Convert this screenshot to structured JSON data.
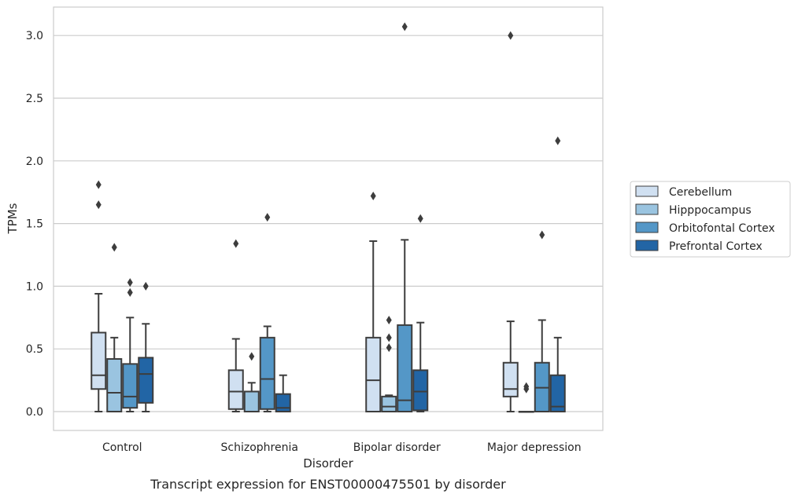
{
  "caption": "Transcript expression for ENST00000475501 by disorder",
  "chart_data": {
    "type": "box",
    "title": "",
    "xlabel": "Disorder",
    "ylabel": "TPMs",
    "ylim": [
      -0.15,
      3.23
    ],
    "yticks": [
      0.0,
      0.5,
      1.0,
      1.5,
      2.0,
      2.5,
      3.0
    ],
    "ytick_labels": [
      "0.0",
      "0.5",
      "1.0",
      "1.5",
      "2.0",
      "2.5",
      "3.0"
    ],
    "grid": "horizontal",
    "legend_position": "right",
    "categories": [
      "Control",
      "Schizophrenia",
      "Bipolar disorder",
      "Major depression"
    ],
    "series": [
      {
        "name": "Cerebellum",
        "color": "#d0e0f1",
        "boxes": [
          {
            "whislo": 0.0,
            "q1": 0.18,
            "med": 0.29,
            "q3": 0.63,
            "whishi": 0.94,
            "fliers": [
              1.65,
              1.81
            ]
          },
          {
            "whislo": 0.0,
            "q1": 0.02,
            "med": 0.16,
            "q3": 0.33,
            "whishi": 0.58,
            "fliers": [
              1.34
            ]
          },
          {
            "whislo": 0.0,
            "q1": 0.0,
            "med": 0.25,
            "q3": 0.59,
            "whishi": 1.36,
            "fliers": [
              1.72
            ]
          },
          {
            "whislo": 0.0,
            "q1": 0.12,
            "med": 0.18,
            "q3": 0.39,
            "whishi": 0.72,
            "fliers": [
              3.0
            ]
          }
        ]
      },
      {
        "name": "Hipppocampus",
        "color": "#9ac4e0",
        "boxes": [
          {
            "whislo": 0.0,
            "q1": 0.0,
            "med": 0.15,
            "q3": 0.42,
            "whishi": 0.59,
            "fliers": [
              1.31
            ]
          },
          {
            "whislo": 0.0,
            "q1": 0.0,
            "med": 0.16,
            "q3": 0.16,
            "whishi": 0.23,
            "fliers": [
              0.44
            ]
          },
          {
            "whislo": 0.0,
            "q1": 0.0,
            "med": 0.04,
            "q3": 0.12,
            "whishi": 0.13,
            "fliers": [
              0.51,
              0.59,
              0.73
            ]
          },
          {
            "whislo": 0.0,
            "q1": 0.0,
            "med": 0.0,
            "q3": 0.0,
            "whishi": 0.0,
            "fliers": [
              0.18,
              0.2
            ]
          }
        ]
      },
      {
        "name": "Orbitofontal Cortex",
        "color": "#5497c7",
        "boxes": [
          {
            "whislo": 0.0,
            "q1": 0.03,
            "med": 0.12,
            "q3": 0.38,
            "whishi": 0.75,
            "fliers": [
              0.95,
              1.03
            ]
          },
          {
            "whislo": 0.0,
            "q1": 0.02,
            "med": 0.26,
            "q3": 0.59,
            "whishi": 0.68,
            "fliers": [
              1.55
            ]
          },
          {
            "whislo": 0.0,
            "q1": 0.0,
            "med": 0.09,
            "q3": 0.69,
            "whishi": 1.37,
            "fliers": [
              3.07
            ]
          },
          {
            "whislo": 0.0,
            "q1": 0.0,
            "med": 0.19,
            "q3": 0.39,
            "whishi": 0.73,
            "fliers": [
              1.41
            ]
          }
        ]
      },
      {
        "name": "Prefrontal Cortex",
        "color": "#2265a5",
        "boxes": [
          {
            "whislo": 0.0,
            "q1": 0.07,
            "med": 0.3,
            "q3": 0.43,
            "whishi": 0.7,
            "fliers": [
              1.0
            ]
          },
          {
            "whislo": 0.0,
            "q1": 0.0,
            "med": 0.03,
            "q3": 0.14,
            "whishi": 0.29,
            "fliers": []
          },
          {
            "whislo": 0.0,
            "q1": 0.01,
            "med": 0.16,
            "q3": 0.33,
            "whishi": 0.71,
            "fliers": [
              1.54
            ]
          },
          {
            "whislo": 0.0,
            "q1": 0.0,
            "med": 0.04,
            "q3": 0.29,
            "whishi": 0.59,
            "fliers": [
              2.16
            ]
          }
        ]
      }
    ]
  }
}
